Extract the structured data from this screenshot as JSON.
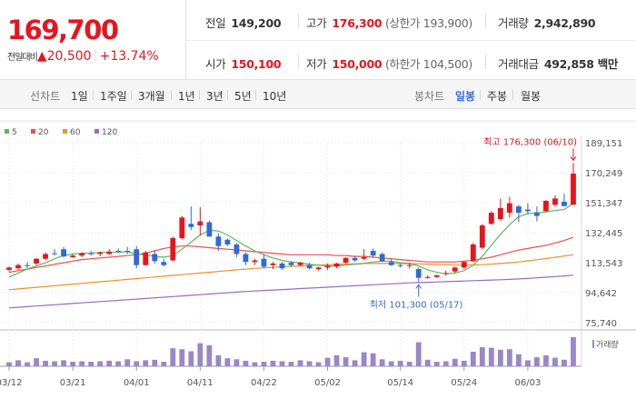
{
  "summary": {
    "price": "169,700",
    "change_label": "전일대비",
    "change_arrow": "▲",
    "change_value": "20,500",
    "change_pct": "+13.74%"
  },
  "stats": {
    "prev_close_label": "전일",
    "prev_close": "149,200",
    "high_label": "고가",
    "high": "176,300",
    "upper_limit": "(상한가 193,900)",
    "volume_label": "거래량",
    "volume": "2,942,890",
    "open_label": "시가",
    "open": "150,100",
    "low_label": "저가",
    "low": "150,000",
    "lower_limit": "(하한가 104,500)",
    "amount_label": "거래대금",
    "amount": "492,858 백만"
  },
  "tabs": {
    "line_label": "선차트",
    "line_periods": [
      "1일",
      "1주일",
      "3개월",
      "1년",
      "3년",
      "5년",
      "10년"
    ],
    "candle_label": "봉차트",
    "candle_periods": [
      "일봉",
      "주봉",
      "월봉"
    ],
    "active": "일봉"
  },
  "colors": {
    "up": "#e8141c",
    "down": "#2f6ad7",
    "ma5": "#5cb85c",
    "ma20": "#e8514b",
    "ma60": "#f0902a",
    "ma120": "#9a6ac6",
    "volume": "#9b87c7"
  },
  "chart_data": {
    "type": "candlestick",
    "legend": [
      {
        "name": "5",
        "color": "#5cb85c"
      },
      {
        "name": "20",
        "color": "#e8514b"
      },
      {
        "name": "60",
        "color": "#f0902a"
      },
      {
        "name": "120",
        "color": "#9a6ac6"
      }
    ],
    "y_ticks": [
      "189,151",
      "170,249",
      "151,347",
      "132,445",
      "113,543",
      "94,642",
      "75,740"
    ],
    "y_range": [
      75740,
      189151
    ],
    "x_ticks": [
      "03/12",
      "03/21",
      "04/01",
      "04/11",
      "04/22",
      "05/02",
      "05/14",
      "05/24",
      "06/03"
    ],
    "x_tick_indices": [
      0,
      7,
      14,
      21,
      28,
      35,
      43,
      50,
      57
    ],
    "annotations": {
      "high_text": "최고 176,300 (06/10)",
      "high_value": 176300,
      "high_index": 62,
      "low_text": "최저 101,300 (05/17)",
      "low_value": 101300,
      "low_index": 45
    },
    "candles": [
      [
        109000,
        111000,
        108000,
        110500
      ],
      [
        110000,
        113000,
        109000,
        112000
      ],
      [
        112000,
        114000,
        110000,
        111500
      ],
      [
        113000,
        116500,
        112000,
        116000
      ],
      [
        116000,
        120000,
        115000,
        119000
      ],
      [
        119500,
        122000,
        118000,
        119000
      ],
      [
        122000,
        123500,
        117000,
        117500
      ],
      [
        117000,
        119000,
        116500,
        118000
      ],
      [
        118000,
        120000,
        117000,
        119500
      ],
      [
        119500,
        121000,
        118000,
        119000
      ],
      [
        119000,
        120500,
        117500,
        120000
      ],
      [
        119000,
        122000,
        118500,
        120500
      ],
      [
        121000,
        122500,
        120000,
        120500
      ],
      [
        121000,
        123500,
        119000,
        120500
      ],
      [
        122000,
        124000,
        110000,
        112000
      ],
      [
        112000,
        121000,
        111500,
        120000
      ],
      [
        119000,
        121500,
        113000,
        114500
      ],
      [
        114000,
        116000,
        111000,
        112000
      ],
      [
        115000,
        130000,
        114500,
        129000
      ],
      [
        129000,
        143000,
        128000,
        142000
      ],
      [
        138000,
        149000,
        134000,
        136000
      ],
      [
        137000,
        148500,
        130500,
        139500
      ],
      [
        139000,
        140000,
        130000,
        130000
      ],
      [
        130000,
        132000,
        121000,
        124000
      ],
      [
        128000,
        129000,
        124000,
        125000
      ],
      [
        125000,
        126000,
        117000,
        119000
      ],
      [
        119000,
        120000,
        112000,
        114000
      ],
      [
        114000,
        116000,
        112000,
        115000
      ],
      [
        116000,
        119000,
        110000,
        111000
      ],
      [
        112000,
        114000,
        109500,
        113000
      ],
      [
        113000,
        114000,
        109000,
        110000
      ],
      [
        113500,
        114500,
        111000,
        112000
      ],
      [
        112000,
        114000,
        111500,
        113500
      ],
      [
        112000,
        113500,
        109500,
        110000
      ],
      [
        109500,
        111000,
        108500,
        110500
      ],
      [
        110500,
        113000,
        109000,
        111500
      ],
      [
        111000,
        113500,
        110000,
        113000
      ],
      [
        113500,
        117000,
        113000,
        116500
      ],
      [
        116500,
        118000,
        114000,
        115000
      ],
      [
        116000,
        122000,
        115000,
        117000
      ],
      [
        121000,
        122500,
        117000,
        118000
      ],
      [
        119000,
        120000,
        114000,
        114500
      ],
      [
        114000,
        116000,
        111500,
        112000
      ],
      [
        112000,
        113000,
        110500,
        111500
      ],
      [
        111500,
        113500,
        110000,
        112000
      ],
      [
        109500,
        110500,
        101300,
        104000
      ],
      [
        104000,
        105500,
        103500,
        104500
      ],
      [
        104500,
        106000,
        104000,
        105500
      ],
      [
        107000,
        108500,
        105500,
        107000
      ],
      [
        108000,
        111000,
        107000,
        110500
      ],
      [
        110500,
        114500,
        109500,
        114000
      ],
      [
        114500,
        126000,
        114000,
        125000
      ],
      [
        123000,
        138000,
        122000,
        137000
      ],
      [
        138000,
        146000,
        137500,
        145000
      ],
      [
        141000,
        154000,
        140000,
        148000
      ],
      [
        145000,
        155000,
        142000,
        151000
      ],
      [
        149000,
        150000,
        139000,
        145000
      ],
      [
        147000,
        151000,
        144000,
        146000
      ],
      [
        145000,
        149000,
        139500,
        143000
      ],
      [
        146000,
        153000,
        145500,
        152500
      ],
      [
        150000,
        156000,
        149000,
        154000
      ],
      [
        152000,
        157000,
        149000,
        149200
      ],
      [
        150100,
        176300,
        150000,
        169700
      ]
    ],
    "ma5": [
      104500,
      107000,
      109500,
      111500,
      113500,
      116000,
      118000,
      119000,
      119500,
      119500,
      120000,
      120000,
      120000,
      120500,
      119000,
      118500,
      117500,
      117000,
      118000,
      122000,
      126500,
      131000,
      134000,
      133500,
      131000,
      127500,
      124000,
      121000,
      118500,
      116500,
      115000,
      114000,
      113500,
      112500,
      112000,
      111500,
      111500,
      112000,
      112500,
      113000,
      114000,
      114500,
      114500,
      113500,
      113000,
      111500,
      109000,
      107500,
      106500,
      107000,
      108500,
      112000,
      117500,
      124500,
      131500,
      137500,
      142500,
      144500,
      145000,
      145500,
      146500,
      147000,
      151000
    ],
    "ma20": [
      107500,
      108500,
      109500,
      110500,
      111500,
      112500,
      113500,
      114500,
      115500,
      116000,
      116500,
      117000,
      117500,
      118000,
      118500,
      119500,
      121000,
      122500,
      123500,
      124000,
      124000,
      123500,
      123000,
      122500,
      122000,
      121500,
      121000,
      120500,
      120000,
      119500,
      119000,
      118500,
      118500,
      118500,
      118500,
      118500,
      118000,
      118000,
      117500,
      117500,
      117000,
      116500,
      116000,
      115500,
      115000,
      114500,
      114000,
      114000,
      114000,
      114000,
      114500,
      115000,
      116000,
      117000,
      118500,
      120000,
      121500,
      122500,
      123500,
      124500,
      126000,
      127500,
      129500
    ],
    "ma60": [
      96500,
      97000,
      97500,
      98000,
      98500,
      99000,
      99500,
      100000,
      100500,
      101000,
      101500,
      102000,
      102500,
      103000,
      103500,
      104000,
      104500,
      105000,
      105500,
      106000,
      106500,
      107000,
      107500,
      108000,
      108500,
      109000,
      109500,
      110000,
      110300,
      110600,
      110900,
      111200,
      111500,
      111800,
      112000,
      112200,
      112400,
      112600,
      112800,
      113000,
      113000,
      113000,
      113000,
      113000,
      112900,
      112800,
      112600,
      112400,
      112200,
      112000,
      112000,
      112100,
      112300,
      112600,
      113000,
      113500,
      114000,
      114700,
      115400,
      116100,
      116900,
      117700,
      118500
    ],
    "ma120": [
      85000,
      85400,
      85800,
      86200,
      86600,
      87000,
      87400,
      87800,
      88200,
      88600,
      89000,
      89400,
      89800,
      90200,
      90600,
      91000,
      91400,
      91800,
      92200,
      92600,
      93000,
      93400,
      93800,
      94200,
      94600,
      95000,
      95400,
      95700,
      96000,
      96300,
      96600,
      96900,
      97200,
      97500,
      97800,
      98100,
      98400,
      98700,
      99000,
      99300,
      99600,
      99900,
      100200,
      100500,
      100800,
      101000,
      101200,
      101400,
      101600,
      101800,
      102000,
      102200,
      102400,
      102600,
      102800,
      103000,
      103300,
      103600,
      104000,
      104400,
      104800,
      105200,
      105700
    ],
    "volume_label": "거래량",
    "volume": [
      8,
      12,
      8,
      16,
      11,
      10,
      12,
      9,
      10,
      9,
      10,
      11,
      10,
      14,
      10,
      12,
      13,
      9,
      36,
      34,
      30,
      46,
      42,
      22,
      16,
      14,
      11,
      8,
      9,
      11,
      10,
      9,
      12,
      10,
      8,
      17,
      22,
      18,
      12,
      28,
      26,
      14,
      10,
      11,
      9,
      48,
      13,
      9,
      10,
      15,
      11,
      29,
      38,
      37,
      33,
      34,
      24,
      12,
      18,
      22,
      17,
      13,
      58
    ]
  }
}
